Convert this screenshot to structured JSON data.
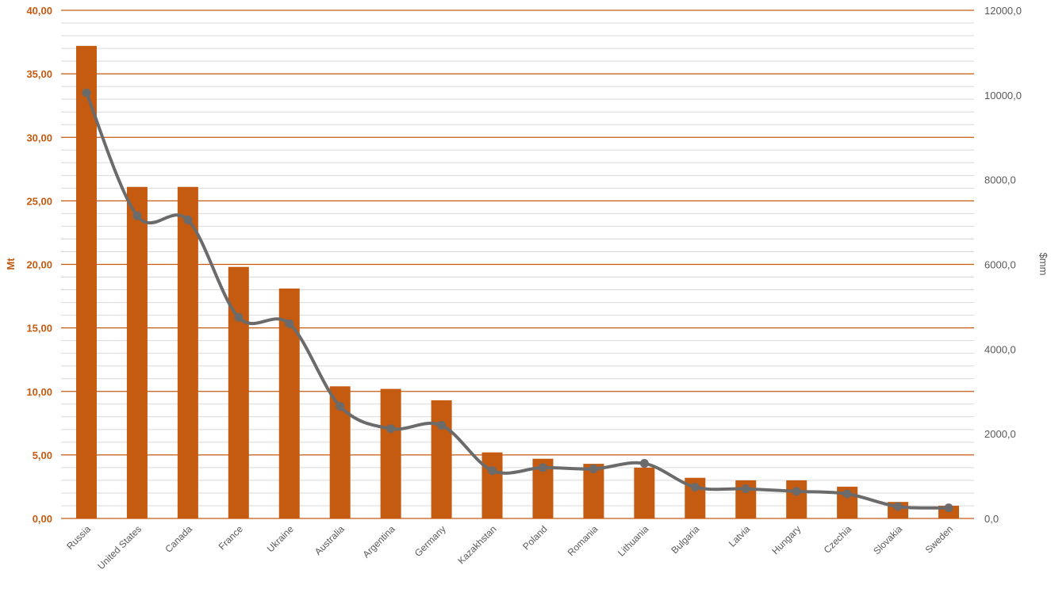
{
  "chart_data": {
    "type": "bar",
    "title": "",
    "xlabel": "",
    "ylabel": "Mt",
    "y2label": "$mm",
    "categories": [
      "Russia",
      "United States",
      "Canada",
      "France",
      "Ukraine",
      "Australia",
      "Argentina",
      "Germany",
      "Kazakhstan",
      "Poland",
      "Romania",
      "Lithuania",
      "Bulgaria",
      "Latvia",
      "Hungary",
      "Czechia",
      "Slovakia",
      "Sweden"
    ],
    "series": [
      {
        "axis": "left",
        "type": "bar",
        "values": [
          37.2,
          26.1,
          26.1,
          19.8,
          18.1,
          10.4,
          10.2,
          9.3,
          5.2,
          4.7,
          4.3,
          4.0,
          3.2,
          3.0,
          3.0,
          2.5,
          1.3,
          1.0
        ]
      },
      {
        "axis": "right",
        "type": "line",
        "values": [
          10050,
          7150,
          7050,
          4750,
          4600,
          2650,
          2120,
          2200,
          1130,
          1200,
          1170,
          1300,
          740,
          700,
          640,
          580,
          280,
          250
        ]
      }
    ],
    "ylim": [
      0,
      40
    ],
    "y2lim": [
      0,
      12000
    ],
    "yticks": [
      "0,00",
      "5,00",
      "10,00",
      "15,00",
      "20,00",
      "25,00",
      "30,00",
      "35,00",
      "40,00"
    ],
    "y2ticks": [
      "0,0",
      "2000,0",
      "4000,0",
      "6000,0",
      "8000,0",
      "10000,0",
      "12000,0"
    ],
    "grid": true,
    "legend": "none",
    "colors": {
      "bar": "#c55a11",
      "line": "#6b6b6b",
      "major_grid": "#c55a11",
      "minor_grid": "#d9d9d9",
      "left_axis_text": "#c55a11",
      "right_axis_text": "#595959",
      "category_text": "#595959"
    }
  }
}
